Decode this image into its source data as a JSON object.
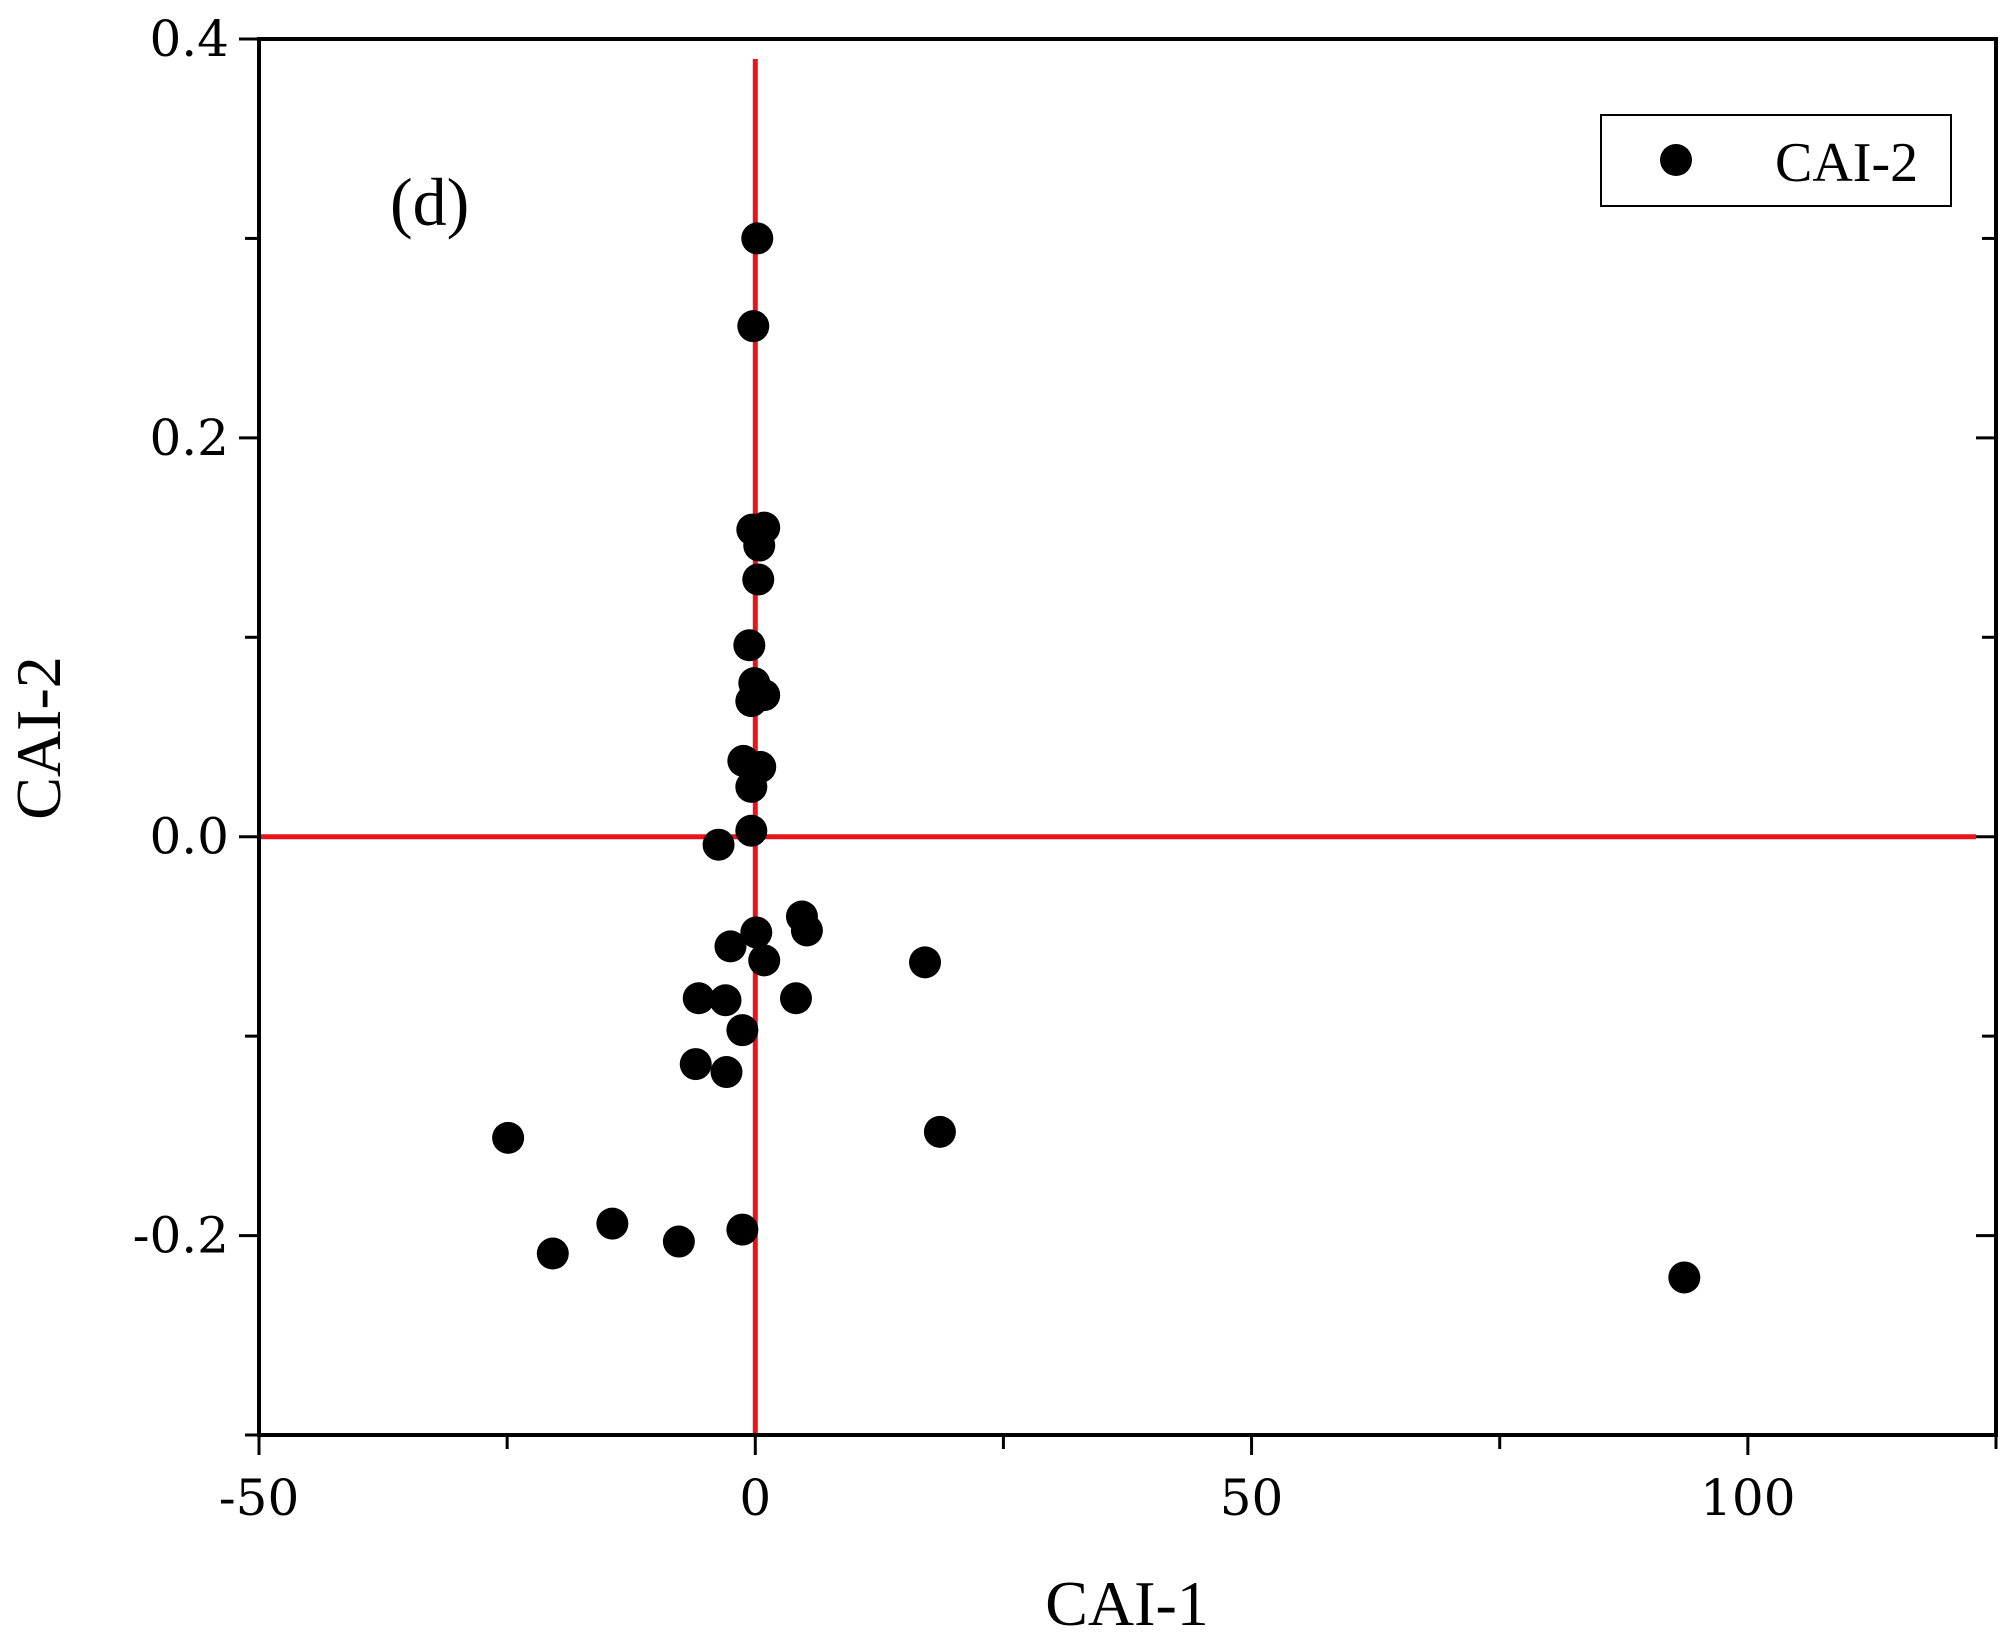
{
  "chart_data": {
    "type": "scatter",
    "panel_label": "(d)",
    "xlabel": "CAI-1",
    "ylabel": "CAI-2",
    "xlim": [
      -50,
      125
    ],
    "ylim": [
      -0.3,
      0.4
    ],
    "xticks": [
      -50,
      0,
      50,
      100
    ],
    "xtick_labels": [
      "-50",
      "0",
      "50",
      "100"
    ],
    "yticks": [
      -0.2,
      0.0,
      0.2,
      0.4
    ],
    "ytick_labels": [
      "-0.2",
      "0.0",
      "0.2",
      "0.4"
    ],
    "grid": false,
    "legend": "top-right",
    "reference_lines": {
      "x": 0,
      "y": 0,
      "color": "#e8141b"
    },
    "series": [
      {
        "name": "CAI-2",
        "color": "#000000",
        "points": [
          [
            0.2,
            0.3
          ],
          [
            -0.2,
            0.256
          ],
          [
            -0.3,
            0.154
          ],
          [
            0.9,
            0.155
          ],
          [
            0.4,
            0.146
          ],
          [
            0.3,
            0.129
          ],
          [
            -0.6,
            0.096
          ],
          [
            -0.1,
            0.077
          ],
          [
            0.9,
            0.071
          ],
          [
            -0.4,
            0.068
          ],
          [
            -1.2,
            0.038
          ],
          [
            0.5,
            0.035
          ],
          [
            -0.4,
            0.025
          ],
          [
            -0.4,
            0.003
          ],
          [
            -3.7,
            -0.004
          ],
          [
            4.7,
            -0.04
          ],
          [
            5.2,
            -0.047
          ],
          [
            0.1,
            -0.048
          ],
          [
            -2.5,
            -0.055
          ],
          [
            0.9,
            -0.062
          ],
          [
            17.1,
            -0.063
          ],
          [
            -5.7,
            -0.081
          ],
          [
            -3.0,
            -0.082
          ],
          [
            4.1,
            -0.081
          ],
          [
            -1.3,
            -0.097
          ],
          [
            -6.0,
            -0.114
          ],
          [
            -2.9,
            -0.118
          ],
          [
            -24.9,
            -0.151
          ],
          [
            18.6,
            -0.148
          ],
          [
            -14.4,
            -0.194
          ],
          [
            -1.3,
            -0.197
          ],
          [
            -7.7,
            -0.203
          ],
          [
            -20.4,
            -0.209
          ],
          [
            93.6,
            -0.221
          ]
        ]
      }
    ]
  }
}
